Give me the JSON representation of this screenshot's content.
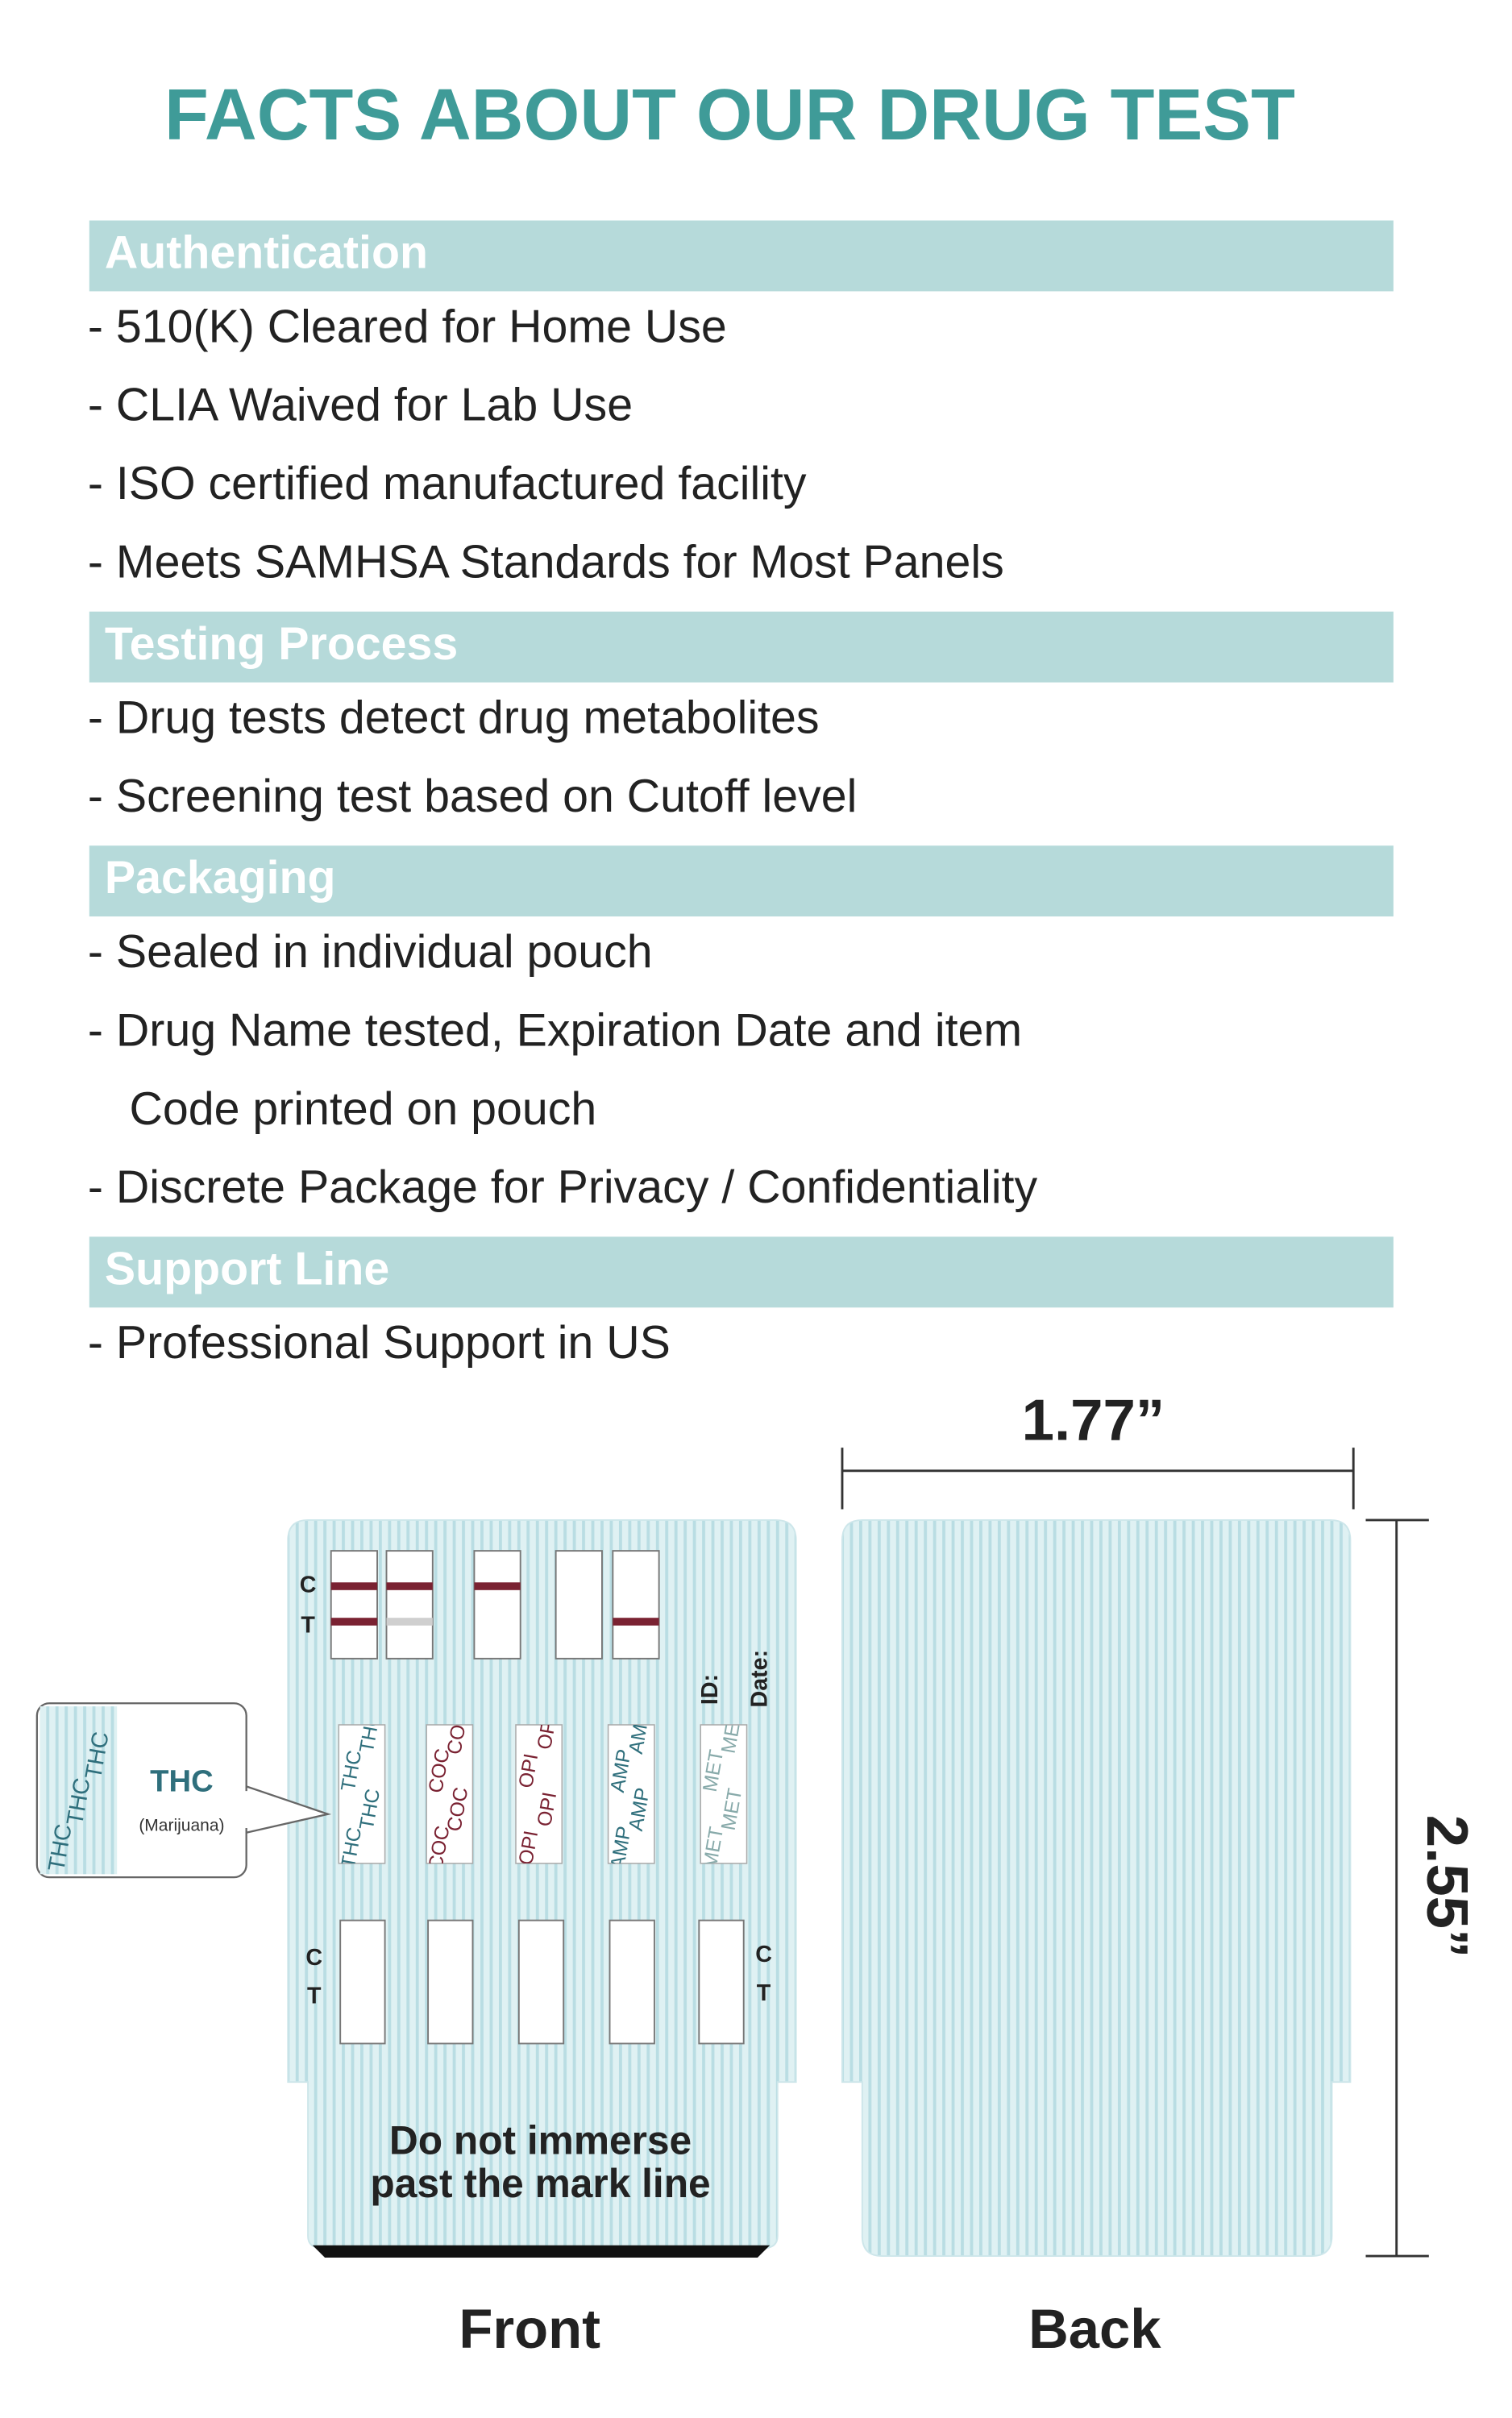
{
  "title": "FACTS ABOUT OUR DRUG TEST",
  "sections": [
    {
      "heading": "Authentication",
      "items": [
        "- 510(K) Cleared for Home Use",
        "- CLIA Waived for Lab Use",
        "- ISO certified manufactured facility",
        "- Meets SAMHSA Standards for Most Panels"
      ]
    },
    {
      "heading": "Testing Process",
      "items": [
        "- Drug tests detect drug metabolites",
        "- Screening test based on Cutoff level"
      ]
    },
    {
      "heading": "Packaging",
      "items": [
        "- Sealed in individual pouch",
        [
          "- Drug Name tested, Expiration Date and item",
          "Code printed on pouch"
        ],
        "- Discrete Package for Privacy / Confidentiality"
      ]
    },
    {
      "heading": "Support Line",
      "items": [
        "- Professional Support in US"
      ]
    }
  ],
  "diagram": {
    "width_label": "1.77”",
    "height_label": "2.55”",
    "front_label": "Front",
    "back_label": "Back",
    "warning": [
      "Do not immerse",
      "past the mark line"
    ],
    "callout": {
      "name": "THC",
      "note": "(Marijuana)"
    },
    "control_label": "C",
    "test_label": "T",
    "id_label": "ID:",
    "date_label": "Date:",
    "strips": [
      "THC",
      "COC",
      "OPI",
      "AMP",
      "MET"
    ]
  }
}
